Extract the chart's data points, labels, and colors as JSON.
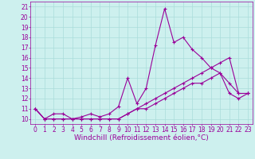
{
  "xlabel": "Windchill (Refroidissement éolien,°C)",
  "xlim": [
    -0.5,
    23.5
  ],
  "ylim": [
    9.5,
    21.5
  ],
  "xticks": [
    0,
    1,
    2,
    3,
    4,
    5,
    6,
    7,
    8,
    9,
    10,
    11,
    12,
    13,
    14,
    15,
    16,
    17,
    18,
    19,
    20,
    21,
    22,
    23
  ],
  "yticks": [
    10,
    11,
    12,
    13,
    14,
    15,
    16,
    17,
    18,
    19,
    20,
    21
  ],
  "bg_color": "#cdf0ee",
  "grid_color": "#aadcda",
  "line_color": "#990099",
  "line1_x": [
    0,
    1,
    2,
    3,
    4,
    5,
    6,
    7,
    8,
    9,
    10,
    11,
    12,
    13,
    14,
    15,
    16,
    17,
    18,
    19,
    20,
    21,
    22,
    23
  ],
  "line1_y": [
    11.0,
    10.0,
    10.5,
    10.5,
    10.0,
    10.2,
    10.5,
    10.2,
    10.5,
    11.2,
    14.0,
    11.5,
    13.0,
    17.2,
    20.8,
    17.5,
    18.0,
    16.8,
    16.0,
    15.0,
    14.5,
    13.5,
    12.5,
    12.5
  ],
  "line2_x": [
    0,
    1,
    2,
    3,
    4,
    5,
    6,
    7,
    8,
    9,
    10,
    11,
    12,
    13,
    14,
    15,
    16,
    17,
    18,
    19,
    20,
    21,
    22,
    23
  ],
  "line2_y": [
    11.0,
    10.0,
    10.0,
    10.0,
    10.0,
    10.0,
    10.0,
    10.0,
    10.0,
    10.0,
    10.5,
    11.0,
    11.5,
    12.0,
    12.5,
    13.0,
    13.5,
    14.0,
    14.5,
    15.0,
    15.5,
    16.0,
    12.5,
    12.5
  ],
  "line3_x": [
    0,
    1,
    2,
    3,
    4,
    5,
    6,
    7,
    8,
    9,
    10,
    11,
    12,
    13,
    14,
    15,
    16,
    17,
    18,
    19,
    20,
    21,
    22,
    23
  ],
  "line3_y": [
    11.0,
    10.0,
    10.0,
    10.0,
    10.0,
    10.0,
    10.0,
    10.0,
    10.0,
    10.0,
    10.5,
    11.0,
    11.0,
    11.5,
    12.0,
    12.5,
    13.0,
    13.5,
    13.5,
    14.0,
    14.5,
    12.5,
    12.0,
    12.5
  ],
  "tick_fontsize": 5.5,
  "label_fontsize": 6.5,
  "linewidth": 0.8,
  "markersize": 3.0
}
